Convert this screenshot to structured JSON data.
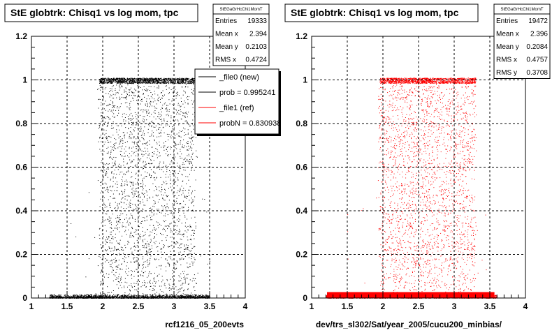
{
  "canvas": {
    "background": "#ffffff"
  },
  "chart_data": [
    {
      "type": "scatter",
      "title": "StE globtrk: Chisq1 vs log mom, tpc",
      "xlabel": "rcf1216_05_200evts",
      "ylabel": "",
      "xlim": [
        1,
        4
      ],
      "ylim": [
        0,
        1.2
      ],
      "xticks": [
        "1",
        "1.5",
        "2",
        "2.5",
        "3",
        "3.5",
        "4"
      ],
      "yticks": [
        "0",
        "0.2",
        "0.4",
        "0.6",
        "0.8",
        "1",
        "1.2"
      ],
      "grid": true,
      "marker_color": "#000000",
      "density": {
        "x_range": [
          1.25,
          3.5
        ],
        "dense_band_y": [
          0.985,
          1.01
        ],
        "low_band_y": [
          0.0,
          0.025
        ],
        "concentration_x": [
          1.95,
          3.3
        ]
      },
      "stats": {
        "title": "StEGaGrHcChi1MomT",
        "rows": [
          {
            "label": "Entries",
            "value": "19333"
          },
          {
            "label": "Mean x",
            "value": "2.394"
          },
          {
            "label": "Mean y",
            "value": "0.2103"
          },
          {
            "label": "RMS x",
            "value": "0.4724"
          }
        ]
      },
      "legend": {
        "placement": "top-right",
        "entries": [
          {
            "label": "_file0 (new)",
            "color": "#000000"
          },
          {
            "label": "prob = 0.995241",
            "color": "#000000"
          },
          {
            "label": "_file1 (ref)",
            "color": "#ff0000"
          },
          {
            "label": "probN = 0.830938",
            "color": "#ff0000"
          }
        ]
      }
    },
    {
      "type": "scatter",
      "title": "StE globtrk: Chisq1 vs log mom, tpc",
      "xlabel": "dev/trs_sl302/Sat/year_2005/cucu200_minbias/",
      "ylabel": "",
      "xlim": [
        1,
        4
      ],
      "ylim": [
        0,
        1.2
      ],
      "xticks": [
        "1",
        "1.5",
        "2",
        "2.5",
        "3",
        "3.5",
        "4"
      ],
      "yticks": [
        "0",
        "0.2",
        "0.4",
        "0.6",
        "0.8",
        "1",
        "1.2"
      ],
      "grid": true,
      "marker_color": "#ff0000",
      "density": {
        "x_range": [
          1.2,
          3.6
        ],
        "dense_band_y": [
          0.985,
          1.01
        ],
        "low_band_y": [
          0.0,
          0.025
        ],
        "concentration_x": [
          1.95,
          3.3
        ]
      },
      "stats": {
        "title": "StEGaGrHcChi1MomT",
        "rows": [
          {
            "label": "Entries",
            "value": "19472"
          },
          {
            "label": "Mean x",
            "value": "2.396"
          },
          {
            "label": "Mean y",
            "value": "0.2084"
          },
          {
            "label": "RMS x",
            "value": "0.4757"
          },
          {
            "label": "RMS y",
            "value": "0.3708"
          }
        ]
      }
    }
  ]
}
